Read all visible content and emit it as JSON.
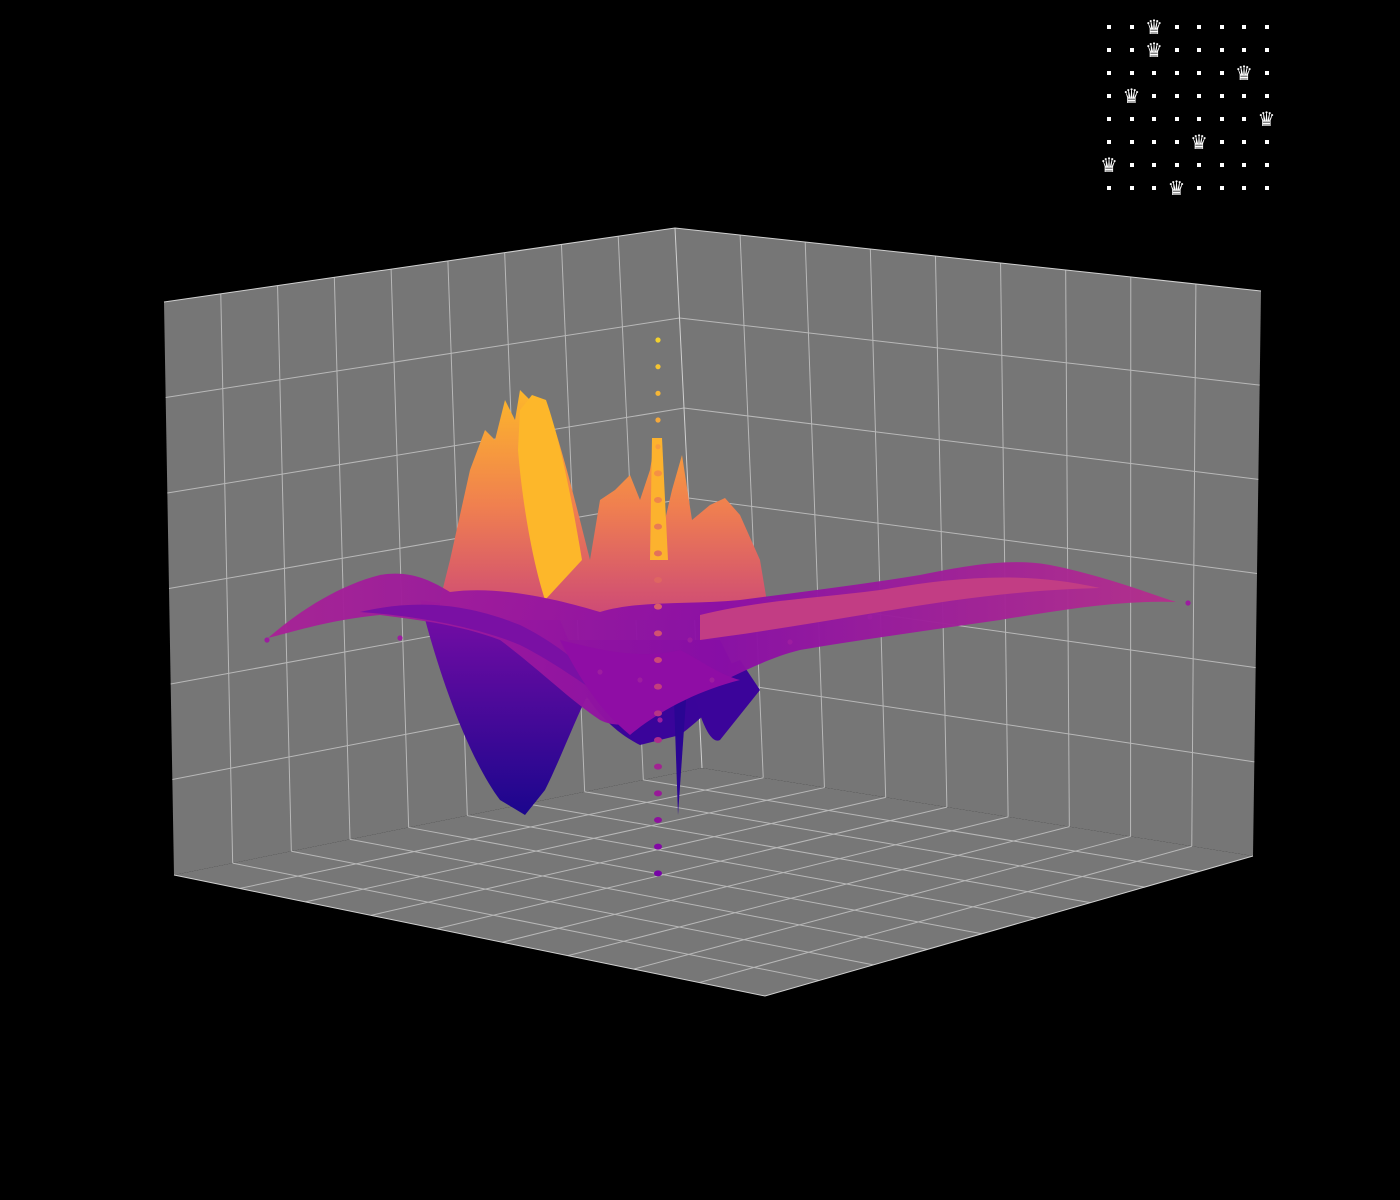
{
  "chart_data": {
    "type": "surface",
    "colorscale": "plasma",
    "colors": {
      "background": "#000000",
      "pane": "#767676",
      "grid": "#b4b4b4",
      "low": "#0d0887",
      "mid": "#9c179e",
      "high": "#fdca26"
    },
    "grid": true,
    "axes_labels_visible": false,
    "x_range": [
      -4,
      4
    ],
    "y_range": [
      -4,
      4
    ],
    "z_range": [
      -3,
      3
    ],
    "description_values": {
      "central_spike_points_z": [
        2.4,
        2.2,
        2.0,
        1.8,
        1.6,
        1.4,
        1.2,
        1.0,
        0.8,
        0.6,
        0.4,
        0.2,
        0.0,
        -0.2,
        -0.4,
        -0.6,
        -0.8,
        -1.0,
        -1.2,
        -1.4,
        -1.6
      ]
    }
  },
  "board": {
    "size": 8,
    "queen_columns": [
      2,
      2,
      6,
      1,
      7,
      4,
      0,
      3
    ],
    "queen_icon": "queen-icon",
    "empty_icon": "dot-icon"
  }
}
